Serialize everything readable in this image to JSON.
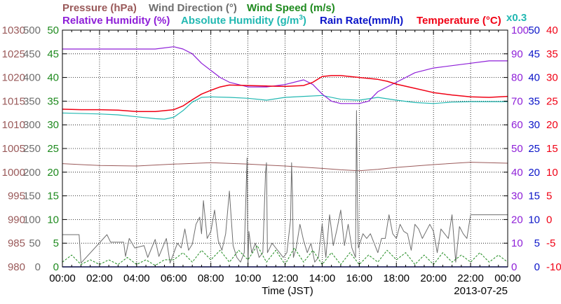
{
  "colors": {
    "pressure": "#9a5a5a",
    "wind_direction": "#6e6e6e",
    "wind_speed": "#1e8a1e",
    "relative_humidity": "#8e1fd8",
    "absolute_humidity": "#22b8b2",
    "rain_rate": "#0a14c8",
    "temperature": "#f00014",
    "grid": "#000000"
  },
  "chart_data": {
    "type": "line",
    "xlabel": "Time (JST)",
    "date": "2013-07-25",
    "x_ticks": [
      "00:00",
      "02:00",
      "04:00",
      "06:00",
      "08:00",
      "10:00",
      "12:00",
      "14:00",
      "16:00",
      "18:00",
      "20:00",
      "22:00",
      "00:00"
    ],
    "x_range_hours": [
      0,
      24
    ],
    "grid": true,
    "legend": {
      "pressure": "Pressure (hPa)",
      "wind_direction": "Wind Direction (°)",
      "wind_speed": "Wind Speed (m/s)",
      "relative_humidity": "Relative Humidity (%)",
      "absolute_humidity": "Absolute Humidity (g/m",
      "absolute_humidity_sup": "3",
      "absolute_humidity_close": ")",
      "rain_rate": "Rain Rate(mm/h)",
      "temperature": "Temperature (°C)",
      "abs_scale_note": "x0.3"
    },
    "axes": {
      "pressure": {
        "range": [
          980,
          1030
        ],
        "ticks": [
          "1030",
          "1025",
          "1020",
          "1015",
          "1010",
          "1005",
          "1000",
          "995",
          "990",
          "985",
          "980"
        ]
      },
      "wind_direction": {
        "range": [
          0,
          500
        ],
        "ticks": [
          "500",
          "450",
          "400",
          "350",
          "300",
          "250",
          "200",
          "150",
          "100",
          "50",
          "0"
        ]
      },
      "wind_speed": {
        "range": [
          0,
          50
        ],
        "ticks": [
          "50",
          "45",
          "40",
          "35",
          "30",
          "25",
          "20",
          "15",
          "10",
          "5",
          "0"
        ]
      },
      "relative_humidity": {
        "range": [
          0,
          100
        ],
        "ticks": [
          "100",
          "90",
          "80",
          "70",
          "60",
          "50",
          "40",
          "30",
          "20",
          "10",
          "0"
        ]
      },
      "rain_rate": {
        "range": [
          0,
          50
        ],
        "ticks": [
          "50",
          "45",
          "40",
          "35",
          "30",
          "25",
          "20",
          "15",
          "10",
          "5",
          "0"
        ]
      },
      "temperature": {
        "range": [
          -10,
          40
        ],
        "ticks": [
          "40",
          "35",
          "30",
          "25",
          "20",
          "15",
          "10",
          "5",
          "0",
          "-5",
          "-10"
        ]
      }
    },
    "series": [
      {
        "key": "pressure",
        "name": "Pressure (hPa)",
        "axis": "pressure",
        "x": [
          0,
          2,
          4,
          6,
          8,
          10,
          12,
          14,
          15,
          16,
          17,
          18,
          20,
          22,
          24
        ],
        "y": [
          1001.8,
          1001.4,
          1001.3,
          1001.7,
          1002.0,
          1001.7,
          1001.3,
          1000.8,
          1000.5,
          1000.3,
          1000.6,
          1001.0,
          1001.6,
          1002.1,
          1001.9
        ]
      },
      {
        "key": "relative_humidity",
        "name": "Relative Humidity (%)",
        "axis": "relative_humidity",
        "x": [
          0,
          2,
          4,
          5,
          6,
          6.5,
          7,
          7.5,
          8,
          8.5,
          9,
          10,
          11,
          12,
          13,
          13.5,
          14,
          14.5,
          15,
          16,
          16.5,
          17,
          18,
          19,
          20,
          21,
          22,
          23,
          24
        ],
        "y": [
          92,
          92,
          92,
          92,
          93,
          92,
          90,
          86,
          83,
          80,
          78,
          76,
          76,
          77,
          79,
          77,
          73,
          70,
          69,
          69,
          70,
          74,
          78,
          82,
          84,
          85,
          86,
          87,
          87
        ]
      },
      {
        "key": "temperature",
        "name": "Temperature (°C)",
        "axis": "temperature",
        "x": [
          0,
          1,
          2,
          3,
          4,
          5,
          6,
          6.5,
          7,
          7.5,
          8,
          8.5,
          9,
          10,
          11,
          12,
          13,
          13.5,
          14,
          14.5,
          15,
          16,
          17,
          17.5,
          18,
          19,
          20,
          21,
          22,
          23,
          24
        ],
        "y": [
          23.3,
          23.2,
          23.2,
          23.1,
          22.8,
          22.8,
          23.2,
          24.0,
          25.3,
          26.5,
          27.3,
          28.0,
          28.4,
          28.3,
          28.2,
          28.1,
          28.3,
          29.0,
          30.2,
          30.4,
          30.4,
          30.0,
          29.6,
          29.2,
          28.6,
          27.7,
          26.8,
          26.3,
          25.9,
          25.8,
          26.0
        ]
      },
      {
        "key": "absolute_humidity",
        "name": "Absolute Humidity (g/m3)",
        "axis": "temperature",
        "x": [
          0,
          2,
          3,
          4,
          5,
          5.5,
          6,
          6.5,
          7,
          7.5,
          8,
          9,
          10,
          11,
          12,
          13,
          14,
          15,
          16,
          17,
          18,
          19,
          20,
          21,
          22,
          23,
          24
        ],
        "y": [
          22.5,
          22.3,
          22.1,
          21.7,
          21.3,
          21.2,
          21.6,
          23.0,
          24.8,
          25.8,
          25.9,
          25.8,
          25.6,
          25.2,
          25.8,
          26.0,
          26.2,
          25.4,
          25.2,
          25.8,
          25.2,
          24.7,
          24.5,
          24.8,
          24.9,
          24.9,
          24.9
        ]
      },
      {
        "key": "wind_direction",
        "name": "Wind Direction (°)",
        "axis": "wind_direction",
        "x": [
          0,
          0.9,
          1,
          2.4,
          2.6,
          3.3,
          3.4,
          3.6,
          3.9,
          4.4,
          4.6,
          5.0,
          5.2,
          5.6,
          5.8,
          6.2,
          6.4,
          6.6,
          6.8,
          7.0,
          7.2,
          7.4,
          7.5,
          7.6,
          7.8,
          8.0,
          8.2,
          8.4,
          8.6,
          8.8,
          9.0,
          9.2,
          9.4,
          9.6,
          9.8,
          9.95,
          10.0,
          10.05,
          10.2,
          10.4,
          10.6,
          10.8,
          10.95,
          11.0,
          11.05,
          11.3,
          11.5,
          11.7,
          11.9,
          12.1,
          12.3,
          12.35,
          12.4,
          12.45,
          12.6,
          12.8,
          13.0,
          13.2,
          13.4,
          13.6,
          13.8,
          14.0,
          14.2,
          14.4,
          14.6,
          14.8,
          15.0,
          15.2,
          15.4,
          15.6,
          15.8,
          15.85,
          15.9,
          15.95,
          16.2,
          16.4,
          16.6,
          16.8,
          17.0,
          17.2,
          17.4,
          17.6,
          17.8,
          18.0,
          18.2,
          18.4,
          18.6,
          18.8,
          19.0,
          19.2,
          19.4,
          19.6,
          19.8,
          20.0,
          20.2,
          20.4,
          20.6,
          20.8,
          21.0,
          21.2,
          21.4,
          21.6,
          21.8,
          22.0,
          22.2,
          22.4,
          23.0,
          24.0
        ],
        "y": [
          68,
          68,
          8,
          68,
          52,
          52,
          22,
          60,
          40,
          45,
          20,
          58,
          22,
          60,
          8,
          50,
          40,
          80,
          35,
          48,
          90,
          105,
          70,
          140,
          60,
          75,
          120,
          55,
          35,
          70,
          160,
          45,
          20,
          10,
          30,
          230,
          0,
          75,
          30,
          50,
          20,
          30,
          200,
          220,
          30,
          50,
          40,
          30,
          20,
          30,
          100,
          220,
          150,
          20,
          40,
          90,
          55,
          30,
          50,
          10,
          20,
          90,
          20,
          110,
          45,
          80,
          120,
          45,
          90,
          40,
          20,
          330,
          140,
          40,
          70,
          60,
          70,
          50,
          30,
          60,
          60,
          110,
          70,
          60,
          90,
          75,
          70,
          35,
          90,
          80,
          60,
          75,
          90,
          75,
          30,
          80,
          70,
          60,
          110,
          10,
          85,
          70,
          60,
          110,
          110,
          110,
          110,
          110
        ]
      },
      {
        "key": "wind_speed",
        "name": "Wind Speed (m/s)",
        "axis": "wind_speed",
        "x": [
          0,
          0.5,
          1,
          1.5,
          2,
          2.5,
          3,
          3.5,
          4,
          4.5,
          5,
          5.5,
          6,
          6.5,
          7,
          7.5,
          8,
          8.5,
          9,
          9.5,
          10,
          10.5,
          11,
          11.5,
          12,
          12.5,
          13,
          13.5,
          14,
          14.5,
          15,
          15.5,
          16,
          16.5,
          17,
          17.5,
          18,
          18.5,
          19,
          19.5,
          20,
          20.5,
          21,
          21.5,
          22,
          22.5,
          23,
          23.5,
          24
        ],
        "y": [
          1,
          2.5,
          0.5,
          1.5,
          0.5,
          1.5,
          0.5,
          2.0,
          0.5,
          1.5,
          0.3,
          1.5,
          1.5,
          3.0,
          1.0,
          3.5,
          1.5,
          3.5,
          1.0,
          3.5,
          1.5,
          4.5,
          1.0,
          3.5,
          0.5,
          4.0,
          1.0,
          3.5,
          0.5,
          3.0,
          0.5,
          3.0,
          0.5,
          2.5,
          1.0,
          3.5,
          1.5,
          3.0,
          0.5,
          2.5,
          0.5,
          3.0,
          1.0,
          2.5,
          1.0,
          3.0,
          1.0,
          2.5,
          1.0
        ]
      },
      {
        "key": "rain_rate",
        "name": "Rain Rate(mm/h)",
        "axis": "rain_rate",
        "x": [
          0,
          24
        ],
        "y": [
          0,
          0
        ]
      }
    ]
  }
}
